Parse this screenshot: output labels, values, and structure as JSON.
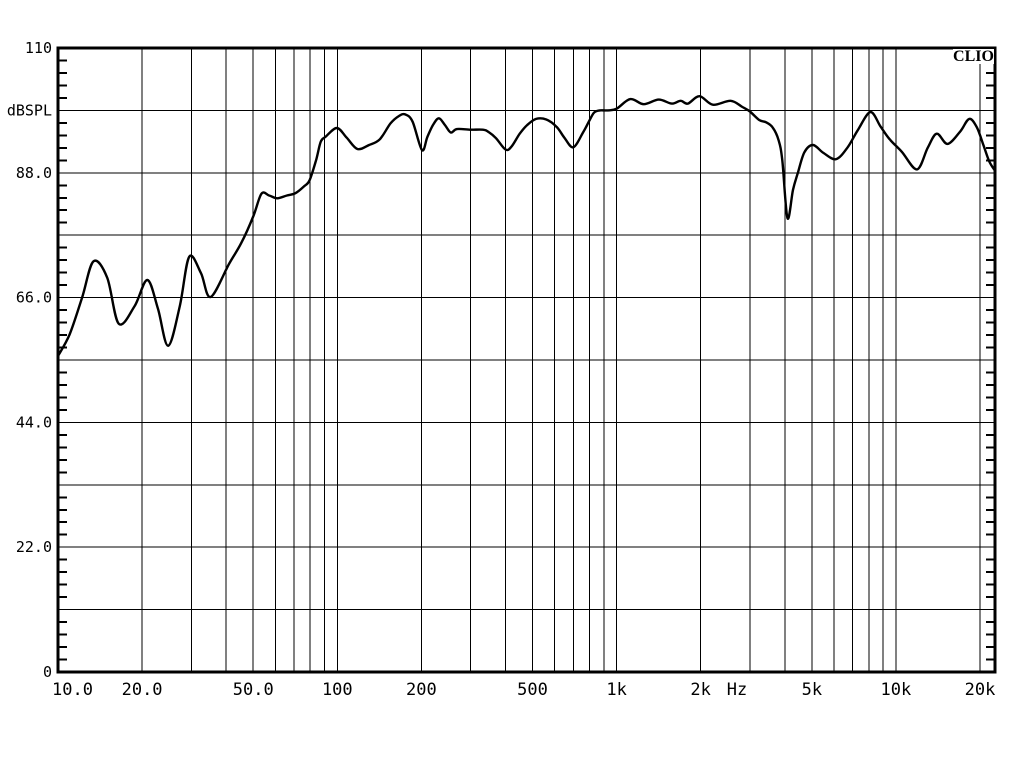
{
  "brand": "CLIO",
  "chart_data": {
    "type": "line",
    "title": "",
    "ylabel": "dBSPL",
    "x_unit_label": "Hz",
    "x_scale": "log",
    "xlim": [
      10,
      22600
    ],
    "ylim": [
      0,
      110
    ],
    "grid": true,
    "legend": "none",
    "line_color": "#000000",
    "background_color": "#ffffff",
    "y_gridlines": [
      99,
      88,
      77,
      66,
      55,
      44,
      33,
      22,
      11
    ],
    "y_minor_tick_step": 2.2,
    "x_gridlines": [
      20,
      30,
      40,
      50,
      60,
      70,
      80,
      90,
      100,
      200,
      300,
      400,
      500,
      600,
      700,
      800,
      900,
      1000,
      2000,
      3000,
      4000,
      5000,
      6000,
      7000,
      8000,
      9000,
      10000,
      20000
    ],
    "y_labels": [
      {
        "value": 110,
        "text": "110"
      },
      {
        "value": 99,
        "text": "dBSPL"
      },
      {
        "value": 88,
        "text": "88.0"
      },
      {
        "value": 66,
        "text": "66.0"
      },
      {
        "value": 44,
        "text": "44.0"
      },
      {
        "value": 22,
        "text": "22.0"
      },
      {
        "value": 0,
        "text": "0"
      }
    ],
    "x_labels": [
      {
        "value": 10,
        "text": "10.0",
        "anchor": "start"
      },
      {
        "value": 20,
        "text": "20.0"
      },
      {
        "value": 50,
        "text": "50.0"
      },
      {
        "value": 100,
        "text": "100"
      },
      {
        "value": 200,
        "text": "200"
      },
      {
        "value": 500,
        "text": "500"
      },
      {
        "value": 1000,
        "text": "1k"
      },
      {
        "value": 2000,
        "text": "2k"
      },
      {
        "value": 5000,
        "text": "5k"
      },
      {
        "value": 10000,
        "text": "10k"
      },
      {
        "value": 20000,
        "text": "20k"
      }
    ],
    "points": [
      [
        10,
        55.7
      ],
      [
        11,
        59.5
      ],
      [
        12.2,
        66.0
      ],
      [
        13.4,
        72.4
      ],
      [
        15,
        69.5
      ],
      [
        16.5,
        61.4
      ],
      [
        18.8,
        64.5
      ],
      [
        20.9,
        69.1
      ],
      [
        22.8,
        64.0
      ],
      [
        24.8,
        57.5
      ],
      [
        27.3,
        64.5
      ],
      [
        29.5,
        73.2
      ],
      [
        32.5,
        70.3
      ],
      [
        35.2,
        66.1
      ],
      [
        41,
        72.0
      ],
      [
        45.3,
        75.6
      ],
      [
        50,
        80.3
      ],
      [
        53.5,
        84.3
      ],
      [
        57,
        84.0
      ],
      [
        61,
        83.5
      ],
      [
        66,
        84.0
      ],
      [
        70.8,
        84.4
      ],
      [
        76,
        85.6
      ],
      [
        79.6,
        86.7
      ],
      [
        84,
        90.3
      ],
      [
        87.3,
        93.5
      ],
      [
        91,
        94.4
      ],
      [
        99.7,
        95.9
      ],
      [
        108,
        94.2
      ],
      [
        118,
        92.2
      ],
      [
        130,
        92.9
      ],
      [
        142,
        93.9
      ],
      [
        155,
        96.7
      ],
      [
        166,
        98.0
      ],
      [
        175,
        98.3
      ],
      [
        186,
        97.0
      ],
      [
        201,
        92.0
      ],
      [
        210,
        94.3
      ],
      [
        220,
        96.4
      ],
      [
        231,
        97.6
      ],
      [
        243,
        96.4
      ],
      [
        255,
        95.1
      ],
      [
        268,
        95.7
      ],
      [
        300,
        95.6
      ],
      [
        332,
        95.6
      ],
      [
        348,
        95.2
      ],
      [
        370,
        94.1
      ],
      [
        400,
        92.1
      ],
      [
        420,
        92.6
      ],
      [
        450,
        94.9
      ],
      [
        478,
        96.4
      ],
      [
        515,
        97.5
      ],
      [
        560,
        97.4
      ],
      [
        610,
        96.1
      ],
      [
        650,
        94.2
      ],
      [
        700,
        92.5
      ],
      [
        760,
        95.2
      ],
      [
        795,
        97.0
      ],
      [
        830,
        98.6
      ],
      [
        870,
        99.0
      ],
      [
        930,
        99.0
      ],
      [
        1000,
        99.3
      ],
      [
        1120,
        101.0
      ],
      [
        1250,
        100.1
      ],
      [
        1415,
        100.9
      ],
      [
        1575,
        100.2
      ],
      [
        1695,
        100.7
      ],
      [
        1800,
        100.2
      ],
      [
        1980,
        101.5
      ],
      [
        2210,
        100.0
      ],
      [
        2560,
        100.7
      ],
      [
        2820,
        99.6
      ],
      [
        3000,
        98.8
      ],
      [
        3240,
        97.3
      ],
      [
        3430,
        96.9
      ],
      [
        3620,
        96.0
      ],
      [
        3800,
        93.8
      ],
      [
        3920,
        90.2
      ],
      [
        4090,
        80.0
      ],
      [
        4280,
        85.0
      ],
      [
        4450,
        87.9
      ],
      [
        4700,
        91.6
      ],
      [
        5050,
        92.9
      ],
      [
        5500,
        91.5
      ],
      [
        6100,
        90.4
      ],
      [
        6700,
        92.4
      ],
      [
        7300,
        95.5
      ],
      [
        8100,
        98.7
      ],
      [
        8800,
        96.2
      ],
      [
        9500,
        93.9
      ],
      [
        10500,
        91.7
      ],
      [
        11900,
        88.6
      ],
      [
        13000,
        92.4
      ],
      [
        14000,
        94.9
      ],
      [
        15300,
        93.1
      ],
      [
        17000,
        95.3
      ],
      [
        18300,
        97.5
      ],
      [
        19500,
        96.0
      ],
      [
        20600,
        92.8
      ],
      [
        21600,
        90.0
      ],
      [
        22600,
        88.4
      ]
    ]
  }
}
